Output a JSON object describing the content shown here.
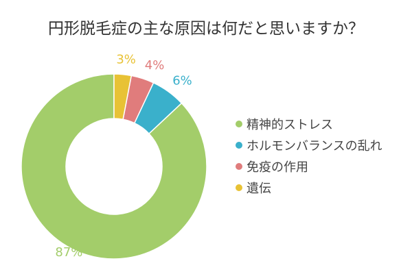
{
  "chart_data": {
    "type": "pie",
    "variant": "donut",
    "title": "円形脱毛症の主な原因は何だと思いますか？",
    "categories": [
      "精神的ストレス",
      "ホルモンバランスの乱れ",
      "免疫の作用",
      "遺伝"
    ],
    "values": [
      87,
      6,
      4,
      3
    ],
    "data_labels": [
      "87%",
      "6%",
      "4%",
      "3%"
    ],
    "colors": [
      "#a3cd6a",
      "#3ab0cb",
      "#e07c7c",
      "#e8c235"
    ],
    "legend_position": "right"
  }
}
